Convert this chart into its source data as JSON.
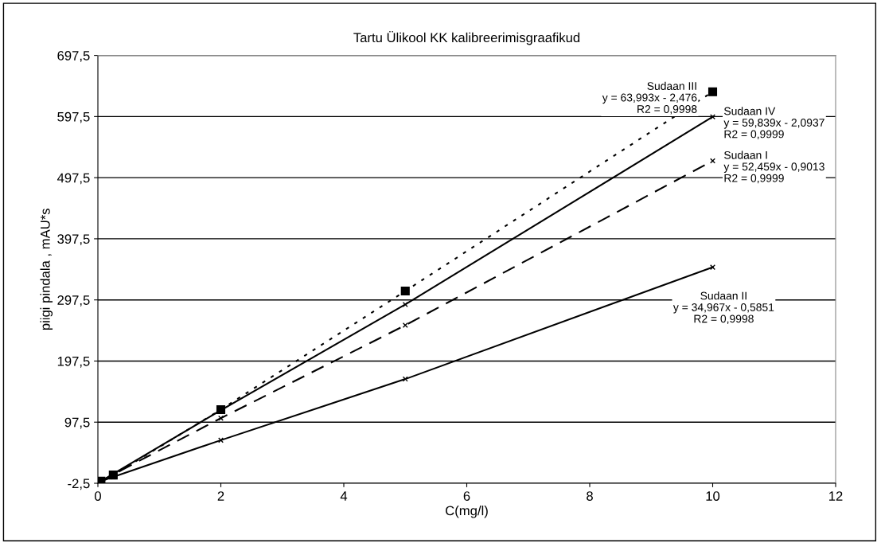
{
  "chart_data": {
    "type": "line",
    "title": "Tartu Ülikool KK kalibreerimisgraafikud",
    "xlabel": "C(mg/l)",
    "ylabel": "piigi pindala , mAU*s",
    "x": [
      0.05,
      0.25,
      2,
      5,
      10
    ],
    "series": [
      {
        "name": "Sudaan III",
        "color": "#000000",
        "values": [
          1,
          11,
          118,
          312,
          638
        ],
        "marker": "square",
        "line_style": "dotted"
      },
      {
        "name": "Sudaan IV",
        "color": "#000000",
        "values": [
          1,
          13,
          117,
          290,
          597
        ],
        "marker": "cross",
        "line_style": "solid"
      },
      {
        "name": "Sudaan I",
        "color": "#000000",
        "values": [
          1,
          12,
          104,
          256,
          525
        ],
        "marker": "cross",
        "line_style": "dashed"
      },
      {
        "name": "Sudaan II",
        "color": "#000000",
        "values": [
          1,
          8,
          68,
          168,
          351
        ],
        "marker": "cross",
        "line_style": "solid"
      }
    ],
    "annotations": [
      "y = 63,993x - 2,476\nR2 = 0,9998",
      "y = 59,839x - 2,0937\nR2 = 0,9999",
      "y = 52,459x - 0,9013\nR2 = 0,9999",
      "y = 34,967x - 0,5851\nR2 = 0,9998"
    ],
    "xlim": [
      0,
      12
    ],
    "xticks": [
      0,
      2,
      4,
      6,
      8,
      10,
      12
    ],
    "ylim": [
      -2.5,
      697.5
    ],
    "yticks": [
      {
        "value": -2.5,
        "label": "-2,5"
      },
      {
        "value": 97.5,
        "label": "97,5"
      },
      {
        "value": 197.5,
        "label": "197,5"
      },
      {
        "value": 297.5,
        "label": "297,5"
      },
      {
        "value": 397.5,
        "label": "397,5"
      },
      {
        "value": 497.5,
        "label": "497,5"
      },
      {
        "value": 597.5,
        "label": "597,5"
      },
      {
        "value": 697.5,
        "label": "697,5"
      }
    ],
    "grid": "y",
    "legend": false
  }
}
